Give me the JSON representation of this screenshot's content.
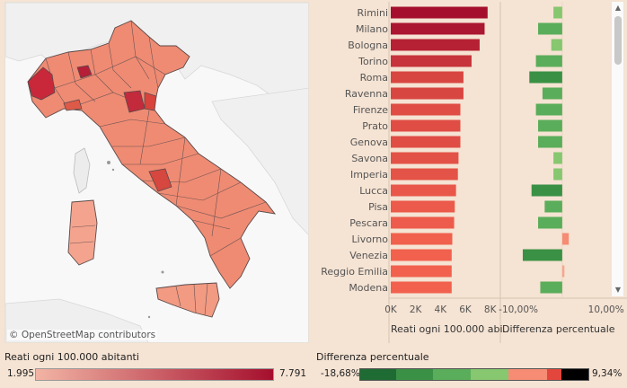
{
  "map": {
    "credit": "© OpenStreetMap contributors"
  },
  "chart_data": {
    "type": "bar",
    "categories": [
      "Rimini",
      "Milano",
      "Bologna",
      "Torino",
      "Roma",
      "Ravenna",
      "Firenze",
      "Prato",
      "Genova",
      "Savona",
      "Imperia",
      "Lucca",
      "Pisa",
      "Pescara",
      "Livorno",
      "Venezia",
      "Reggio Emilia",
      "Modena"
    ],
    "panels": [
      {
        "name": "Reati ogni 100.000 abitanti",
        "values": [
          7791,
          7550,
          7150,
          6500,
          5850,
          5850,
          5600,
          5600,
          5600,
          5450,
          5400,
          5250,
          5150,
          5100,
          4950,
          4900,
          4900,
          4900
        ],
        "xlim": [
          0,
          8600
        ],
        "ticks": [
          "0K",
          "2K",
          "4K",
          "6K",
          "8K"
        ],
        "tick_values": [
          0,
          2000,
          4000,
          6000,
          8000
        ],
        "xlabel": "Reati ogni 100.000 abi.."
      },
      {
        "name": "Differenza percentuale",
        "values": [
          -2.0,
          -5.5,
          -2.5,
          -6.0,
          -7.5,
          -4.5,
          -6.0,
          -5.5,
          -5.5,
          -2.0,
          -2.0,
          -7.0,
          -4.0,
          -5.5,
          1.5,
          -9.0,
          0.5,
          -5.0
        ],
        "xlim": [
          -13.5,
          11.5
        ],
        "ticks": [
          "-10,00%",
          "10,00%"
        ],
        "tick_values": [
          -10,
          10
        ],
        "xlabel": "Differenza percentuale"
      }
    ]
  },
  "legend_rate": {
    "title": "Reati ogni 100.000 abitanti",
    "min": "1.995",
    "max": "7.791",
    "color_low": "#f2b4a4",
    "color_high": "#a50f2d"
  },
  "legend_diff": {
    "title": "Differenza percentuale",
    "min": "-18,68%",
    "max": "9,34%",
    "colors": [
      "#1f6b34",
      "#3a9145",
      "#5aad5a",
      "#86c76f",
      "#f58c73",
      "#e3463c",
      "#000000"
    ]
  },
  "scrollbar": {
    "up_icon": "triangle-up-icon",
    "down_icon": "triangle-down-icon"
  }
}
